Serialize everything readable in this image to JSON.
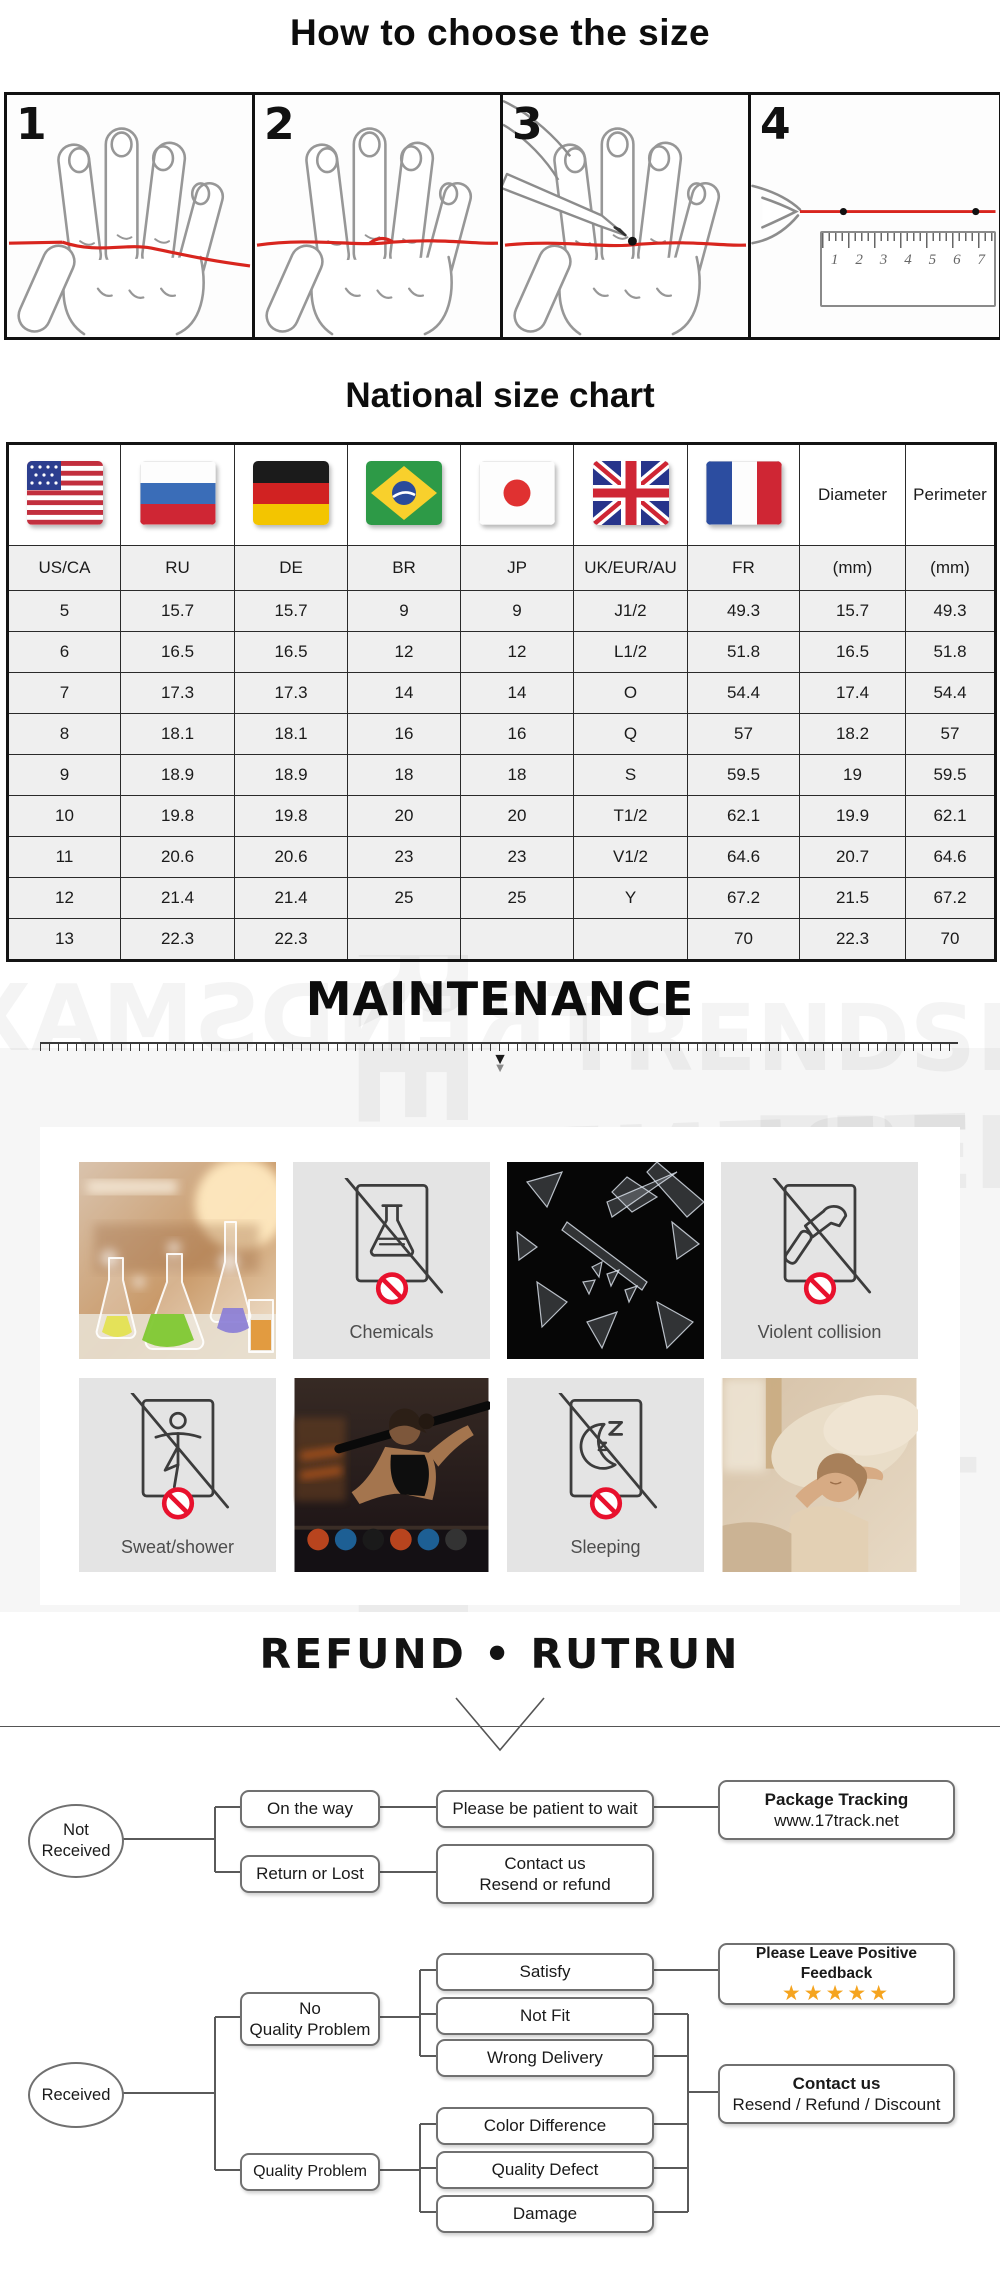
{
  "colors": {
    "accent_red": "#d8251e",
    "prohibition_red": "#e8112d",
    "star_orange": "#f5a41f",
    "flow_line_gray": "#5a5a5a",
    "icon_tile_gray": "#e4e4e4"
  },
  "size_guide": {
    "title": "How to choose the size",
    "steps": [
      "1",
      "2",
      "3",
      "4"
    ],
    "ruler_numbers": [
      "1",
      "2",
      "3",
      "4",
      "5",
      "6",
      "7"
    ]
  },
  "size_chart": {
    "title": "National size chart",
    "diameter_label": "Diameter",
    "perimeter_label": "Perimeter",
    "header_row": [
      "US/CA",
      "RU",
      "DE",
      "BR",
      "JP",
      "UK/EUR/AU",
      "FR",
      "(mm)",
      "(mm)"
    ],
    "rows": [
      [
        "5",
        "15.7",
        "15.7",
        "9",
        "9",
        "J1/2",
        "49.3",
        "15.7",
        "49.3"
      ],
      [
        "6",
        "16.5",
        "16.5",
        "12",
        "12",
        "L1/2",
        "51.8",
        "16.5",
        "51.8"
      ],
      [
        "7",
        "17.3",
        "17.3",
        "14",
        "14",
        "O",
        "54.4",
        "17.4",
        "54.4"
      ],
      [
        "8",
        "18.1",
        "18.1",
        "16",
        "16",
        "Q",
        "57",
        "18.2",
        "57"
      ],
      [
        "9",
        "18.9",
        "18.9",
        "18",
        "18",
        "S",
        "59.5",
        "19",
        "59.5"
      ],
      [
        "10",
        "19.8",
        "19.8",
        "20",
        "20",
        "T1/2",
        "62.1",
        "19.9",
        "62.1"
      ],
      [
        "11",
        "20.6",
        "20.6",
        "23",
        "23",
        "V1/2",
        "64.6",
        "20.7",
        "64.6"
      ],
      [
        "12",
        "21.4",
        "21.4",
        "25",
        "25",
        "Y",
        "67.2",
        "21.5",
        "67.2"
      ],
      [
        "13",
        "22.3",
        "22.3",
        "",
        "",
        "",
        "70",
        "22.3",
        "70"
      ]
    ]
  },
  "chart_data": {
    "type": "table",
    "title": "National size chart",
    "columns": [
      "US/CA",
      "RU",
      "DE",
      "BR",
      "JP",
      "UK/EUR/AU",
      "FR",
      "Diameter (mm)",
      "Perimeter (mm)"
    ],
    "rows": [
      [
        "5",
        "15.7",
        "15.7",
        "9",
        "9",
        "J1/2",
        "49.3",
        "15.7",
        "49.3"
      ],
      [
        "6",
        "16.5",
        "16.5",
        "12",
        "12",
        "L1/2",
        "51.8",
        "16.5",
        "51.8"
      ],
      [
        "7",
        "17.3",
        "17.3",
        "14",
        "14",
        "O",
        "54.4",
        "17.4",
        "54.4"
      ],
      [
        "8",
        "18.1",
        "18.1",
        "16",
        "16",
        "Q",
        "57",
        "18.2",
        "57"
      ],
      [
        "9",
        "18.9",
        "18.9",
        "18",
        "18",
        "S",
        "59.5",
        "19",
        "59.5"
      ],
      [
        "10",
        "19.8",
        "19.8",
        "20",
        "20",
        "T1/2",
        "62.1",
        "19.9",
        "62.1"
      ],
      [
        "11",
        "20.6",
        "20.6",
        "23",
        "23",
        "V1/2",
        "64.6",
        "20.7",
        "64.6"
      ],
      [
        "12",
        "21.4",
        "21.4",
        "25",
        "25",
        "Y",
        "67.2",
        "21.5",
        "67.2"
      ],
      [
        "13",
        "22.3",
        "22.3",
        "",
        "",
        "",
        "70",
        "22.3",
        "70"
      ]
    ]
  },
  "maintenance": {
    "title": "MAINTENANCE",
    "watermark": "TRENDSMAX",
    "down_arrow": "▼",
    "tiles": {
      "chemicals": "Chemicals",
      "collision": "Violent collision",
      "sweat": "Sweat/shower",
      "sleeping": "Sleeping"
    }
  },
  "refund": {
    "title": "REFUND • RUTRUN",
    "not_received_l1": "Not",
    "not_received_l2": "Received",
    "on_the_way": "On the way",
    "be_patient": "Please be patient to wait",
    "tracking_l1": "Package Tracking",
    "tracking_l2": "www.17track.net",
    "return_or_lost": "Return or Lost",
    "contact1_l1": "Contact us",
    "contact1_l2": "Resend or refund",
    "received": "Received",
    "no_quality_l1": "No",
    "no_quality_l2": "Quality Problem",
    "satisfy": "Satisfy",
    "not_fit": "Not Fit",
    "wrong_delivery": "Wrong Delivery",
    "quality_problem": "Quality Problem",
    "color_difference": "Color Difference",
    "quality_defect": "Quality Defect",
    "damage": "Damage",
    "feedback_title": "Please Leave Positive Feedback",
    "stars": "★★★★★",
    "contact2_l1": "Contact us",
    "contact2_l2": "Resend / Refund / Discount"
  }
}
